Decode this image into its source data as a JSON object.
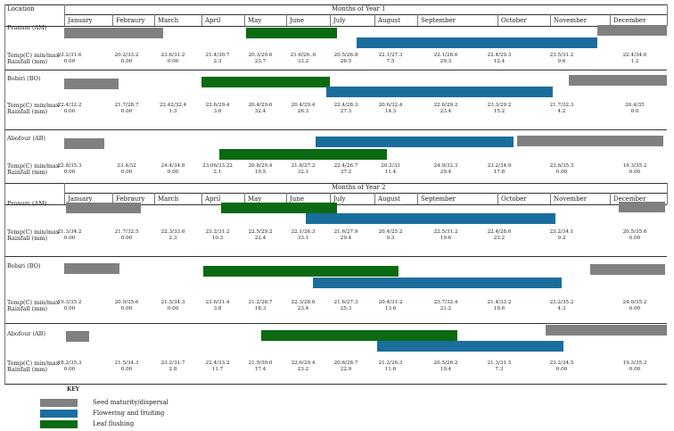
{
  "location_header": "Location",
  "months": [
    "January",
    "Febraury",
    "March",
    "April",
    "May",
    "June",
    "July",
    "August",
    "September",
    "October",
    "November",
    "December"
  ],
  "year1_header": "Months of  Year 1",
  "year2_header": "Months of  Year 2",
  "temp_label": "Temp(C) min/max",
  "rain_label": "Rainfall (mm)",
  "legend": {
    "title": "KEY",
    "items": [
      {
        "label": "Seed maturity/dispersal",
        "color": "#808080"
      },
      {
        "label": "Flowering and fruiting",
        "color": "#1b6d9e"
      },
      {
        "label": "Leaf flushing",
        "color": "#0b6a12"
      }
    ]
  },
  "year1": {
    "sites": [
      {
        "name": "Pranum (AM)",
        "temp": [
          "23.2/31.6",
          "20.2/33.2",
          "23.6/31.2",
          "21.4/30.7",
          "20.3/29.6",
          "21.6/26..6",
          "20.5/26.8",
          "22.1/27.3",
          "22.1/28.6",
          "22.4/29.3",
          "23.5/31.2",
          "22.4/34.6"
        ],
        "rain": [
          "0.00",
          "0.00",
          "0.00",
          "2.3",
          "23.7",
          "33.2",
          "26.5",
          "7.5",
          "29.3",
          "12.4",
          "9.6",
          "1.2"
        ]
      },
      {
        "name": "Bobiri (BO)",
        "temp": [
          "22.4/32.2",
          "21.7/28.7",
          "22.42/32.4",
          "23.6/29.4",
          "20.4/29.6",
          "20.4/29.4",
          "22.4/28.3",
          "20.6/32.4",
          "22.6/29.2",
          "23.3/29.2",
          "21.7/32.3",
          "20.4/35"
        ],
        "rain": [
          "0.00",
          "0.00",
          "1.3",
          "3.6",
          "32.4",
          "26.3",
          "27.3",
          "14.3",
          "23.4",
          "15.2",
          "4.2",
          "0.0"
        ]
      },
      {
        "name": "Abofour (AB)",
        "temp": [
          "22.8/35.3",
          "23.4/32",
          "24.4/34.8",
          "23.06/33.22",
          "20.8/29.4",
          "21.8/27.2",
          "22.4/26.7",
          "20.2/33",
          "24.9/32.3",
          "23.2/34.9",
          "23.6/35.3",
          "19.3/35.2"
        ],
        "rain": [
          "0.00",
          "0.00",
          "0.00",
          "2.1",
          "19.5",
          "32.1",
          "37.2",
          "11.4",
          "29.4",
          "17.8",
          "0.00",
          "0.00"
        ]
      }
    ]
  },
  "year2": {
    "sites": [
      {
        "name": "Pranum (AM)",
        "temp": [
          "21.3/34.2",
          "21.7/32.5",
          "22.3/33.6",
          "23.2/31.2",
          "22.5/29.2",
          "22.1/26.3",
          "21.6/27.9",
          "20.4/25.2",
          "22.5/31.2",
          "22.4/28.6",
          "23.2/34.1",
          "20.5/35.6"
        ],
        "rain": [
          "0.00",
          "0.00",
          "2.3",
          "10.3",
          "22.4",
          "33.1",
          "29.4",
          "9.3",
          "19.6",
          "23.2",
          "9.2",
          "0.00"
        ]
      },
      {
        "name": "Bobiri (BO)",
        "temp": [
          "19.3/35.2",
          "20.9/35.6",
          "21.5/34.3",
          "23.6/31.4",
          "21.2/28.7",
          "22.3/28.6",
          "21.6/27.3",
          "20.4/31.2",
          "23.7/32.4",
          "21.4/33.2",
          "23.2/35.2",
          "24.0/35.2"
        ],
        "rain": [
          "0.00",
          "0.00",
          "0.00",
          "3.8",
          "18.3",
          "23.4",
          "25.3",
          "13.6",
          "21.2",
          "19.6",
          "4.3",
          "0.00"
        ]
      },
      {
        "name": "Abofour (AB)",
        "temp": [
          "18.2/35.3",
          "21.5/34.3",
          "23.2/31.7",
          "22.4/33.2",
          "21.5/30.0",
          "22.6/29.4",
          "20.6/28.7",
          "21.2/26.3",
          "20.5/26.2",
          "21.3/31.5",
          "23.2/34.5",
          "19.3/35.2"
        ],
        "rain": [
          "0.00",
          "0.00",
          "2.8",
          "11.7",
          "17.4",
          "23.2",
          "22.9",
          "11.6",
          "19.4",
          "7.3",
          "0.00",
          "0.00"
        ]
      }
    ]
  }
}
